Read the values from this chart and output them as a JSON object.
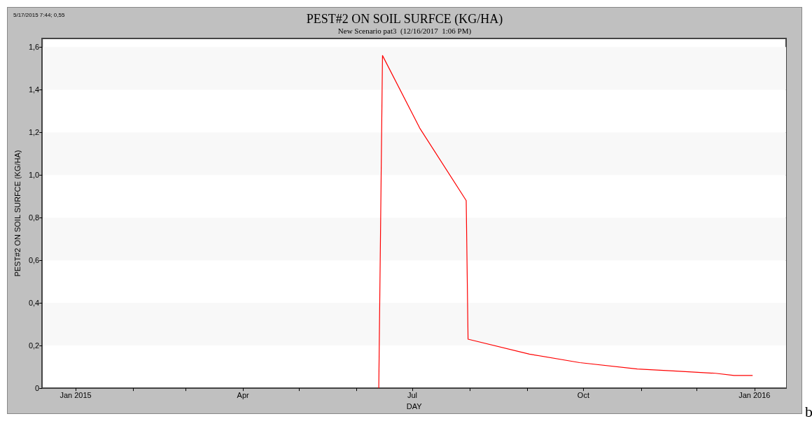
{
  "chart_data": {
    "type": "line",
    "title": "PEST#2 ON SOIL SURFCE (KG/HA)",
    "subtitle": "New Scenario pat3  (12/16/2017  1:06 PM)",
    "xlabel": "DAY",
    "ylabel": "PEST#2 ON SOIL SURFCE (KG/HA)",
    "annotations": [
      "5/17/2015 7:44; 0,55",
      "b"
    ],
    "x": [
      "2015-06-13",
      "2015-06-15",
      "2015-07-05",
      "2015-07-30",
      "2015-07-31",
      "2015-09-02",
      "2015-09-29",
      "2015-10-30",
      "2015-11-20",
      "2015-12-11",
      "2015-12-21",
      "2015-12-31"
    ],
    "series": [
      {
        "color": "#ff0000",
        "values": [
          0,
          1.56,
          1.22,
          0.88,
          0.23,
          0.16,
          0.12,
          0.09,
          0.08,
          0.07,
          0.06,
          0.06
        ]
      }
    ],
    "xlim": [
      "2014-12-14",
      "2016-01-18"
    ],
    "xticks": [
      {
        "value": "2015-01-01",
        "label": "Jan 2015"
      },
      {
        "value": "2015-02-01",
        "label": null
      },
      {
        "value": "2015-03-01",
        "label": null
      },
      {
        "value": "2015-04-01",
        "label": "Apr"
      },
      {
        "value": "2015-05-01",
        "label": null
      },
      {
        "value": "2015-06-01",
        "label": null
      },
      {
        "value": "2015-07-01",
        "label": "Jul"
      },
      {
        "value": "2015-08-01",
        "label": null
      },
      {
        "value": "2015-09-01",
        "label": null
      },
      {
        "value": "2015-10-01",
        "label": "Oct"
      },
      {
        "value": "2015-11-01",
        "label": null
      },
      {
        "value": "2015-12-01",
        "label": null
      },
      {
        "value": "2016-01-01",
        "label": "Jan 2016"
      }
    ],
    "ylim": [
      0,
      1.64
    ],
    "yticks": [
      0,
      {
        "value": 0.2,
        "label": "0,2"
      },
      {
        "value": 0.4,
        "label": "0,4"
      },
      {
        "value": 0.6,
        "label": "0,6"
      },
      {
        "value": 0.8,
        "label": "0,8"
      },
      {
        "value": 1.0,
        "label": "1,0"
      },
      {
        "value": 1.2,
        "label": "1,2"
      },
      {
        "value": 1.4,
        "label": "1,4"
      },
      {
        "value": 1.6,
        "label": "1,6"
      }
    ],
    "marker": "none",
    "line_style": "solid"
  }
}
